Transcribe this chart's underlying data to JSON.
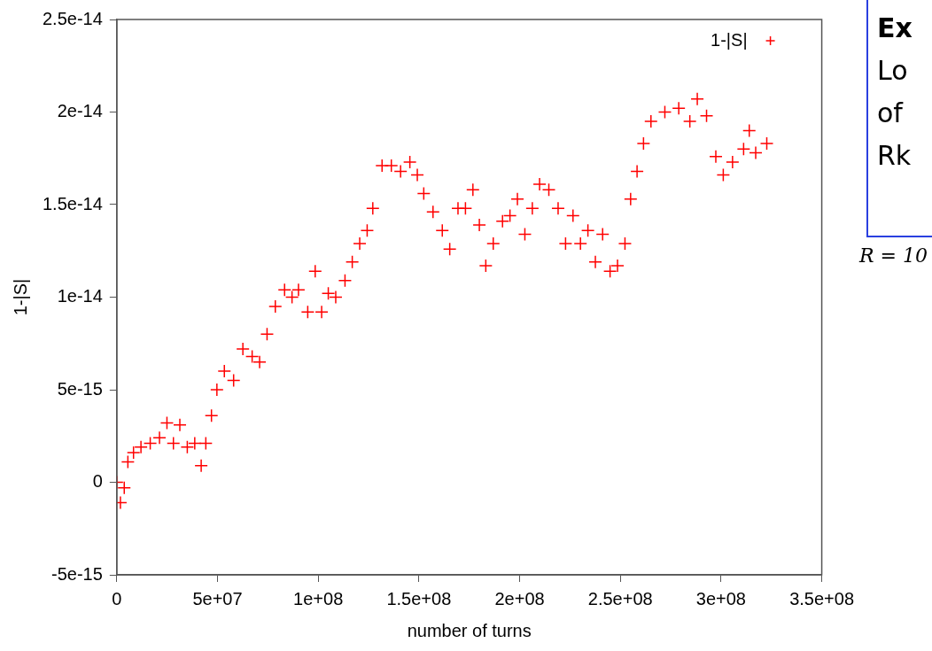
{
  "chart_data": {
    "type": "scatter",
    "xlabel": "number of turns",
    "ylabel": "1-|S|",
    "x": [
      0,
      1800000.0,
      3700000.0,
      5500000.0,
      8300000.0,
      12000000.0,
      16600000.0,
      21200000.0,
      24900000.0,
      28100000.0,
      31300000.0,
      35000000.0,
      38700000.0,
      41900000.0,
      44200000.0,
      47000000.0,
      49700000.0,
      53400000.0,
      58000000.0,
      62600000.0,
      67200000.0,
      70900000.0,
      74600000.0,
      78700000.0,
      83300000.0,
      87000000.0,
      90200000.0,
      94800000.0,
      98500000.0,
      101700000.0,
      105000000.0,
      108700000.0,
      113300000.0,
      116900000.0,
      120600000.0,
      124300000.0,
      127100000.0,
      131700000.0,
      136300000.0,
      140900000.0,
      145500000.0,
      149200000.0,
      152400000.0,
      157000000.0,
      161600000.0,
      165300000.0,
      169400000.0,
      173100000.0,
      176800000.0,
      180000000.0,
      183200000.0,
      186900000.0,
      191500000.0,
      195200000.0,
      198900000.0,
      202600000.0,
      206300000.0,
      209900000.0,
      214500000.0,
      219100000.0,
      222800000.0,
      226500000.0,
      230200000.0,
      233900000.0,
      237600000.0,
      241200000.0,
      244900000.0,
      248600000.0,
      252300000.0,
      255100000.0,
      258300000.0,
      261500000.0,
      265200000.0,
      272100000.0,
      279000000.0,
      284500000.0,
      288200000.0,
      292800000.0,
      297400000.0,
      301100000.0,
      305700000.0,
      311200000.0,
      314000000.0,
      317200000.0,
      322700000.0
    ],
    "series": [
      {
        "name": "1-|S|",
        "color": "#ff0000",
        "values": [
          0,
          -1.1e-15,
          -3e-16,
          1.1e-15,
          1.6e-15,
          1.9e-15,
          2.1e-15,
          2.4e-15,
          3.2e-15,
          2.1e-15,
          3.1e-15,
          1.9e-15,
          2.1e-15,
          9e-16,
          2.1e-15,
          3.6e-15,
          5e-15,
          6e-15,
          5.5e-15,
          7.2e-15,
          6.8e-15,
          6.5e-15,
          8e-15,
          9.5e-15,
          1.04e-14,
          1e-14,
          1.04e-14,
          9.2e-15,
          1.14e-14,
          9.2e-15,
          1.02e-14,
          1e-14,
          1.09e-14,
          1.19e-14,
          1.29e-14,
          1.36e-14,
          1.48e-14,
          1.71e-14,
          1.71e-14,
          1.68e-14,
          1.73e-14,
          1.66e-14,
          1.56e-14,
          1.46e-14,
          1.36e-14,
          1.26e-14,
          1.48e-14,
          1.48e-14,
          1.58e-14,
          1.39e-14,
          1.17e-14,
          1.29e-14,
          1.41e-14,
          1.44e-14,
          1.53e-14,
          1.34e-14,
          1.48e-14,
          1.61e-14,
          1.58e-14,
          1.48e-14,
          1.29e-14,
          1.44e-14,
          1.29e-14,
          1.36e-14,
          1.19e-14,
          1.34e-14,
          1.14e-14,
          1.17e-14,
          1.29e-14,
          1.53e-14,
          1.68e-14,
          1.83e-14,
          1.95e-14,
          2e-14,
          2.02e-14,
          1.95e-14,
          2.07e-14,
          1.98e-14,
          1.76e-14,
          1.66e-14,
          1.73e-14,
          1.8e-14,
          1.9e-14,
          1.78e-14,
          1.83e-14
        ]
      }
    ],
    "xlim": [
      0,
      350000000.0
    ],
    "xticks": [
      0,
      {
        "value": 50000000.0,
        "label": "5e+07"
      },
      {
        "value": 100000000.0,
        "label": "1e+08"
      },
      {
        "value": 150000000.0,
        "label": "1.5e+08"
      },
      {
        "value": 200000000.0,
        "label": "2e+08"
      },
      {
        "value": 250000000.0,
        "label": "2.5e+08"
      },
      {
        "value": 300000000.0,
        "label": "3e+08"
      },
      {
        "value": 350000000.0,
        "label": "3.5e+08"
      }
    ],
    "ylim": [
      -5e-15,
      2.5e-14
    ],
    "yticks": [
      {
        "value": -5e-15,
        "label": "-5e-15"
      },
      0,
      {
        "value": 5e-15,
        "label": "5e-15"
      },
      {
        "value": 1e-14,
        "label": "1e-14"
      },
      {
        "value": 1.5e-14,
        "label": "1.5e-14"
      },
      {
        "value": 2e-14,
        "label": "2e-14"
      },
      {
        "value": 2.5e-14,
        "label": "2.5e-14"
      }
    ],
    "grid": false,
    "legend": "top right",
    "marker": "cross",
    "annotations": [
      "Ex",
      "Lo",
      "of",
      "Rk",
      "R = 10"
    ]
  }
}
